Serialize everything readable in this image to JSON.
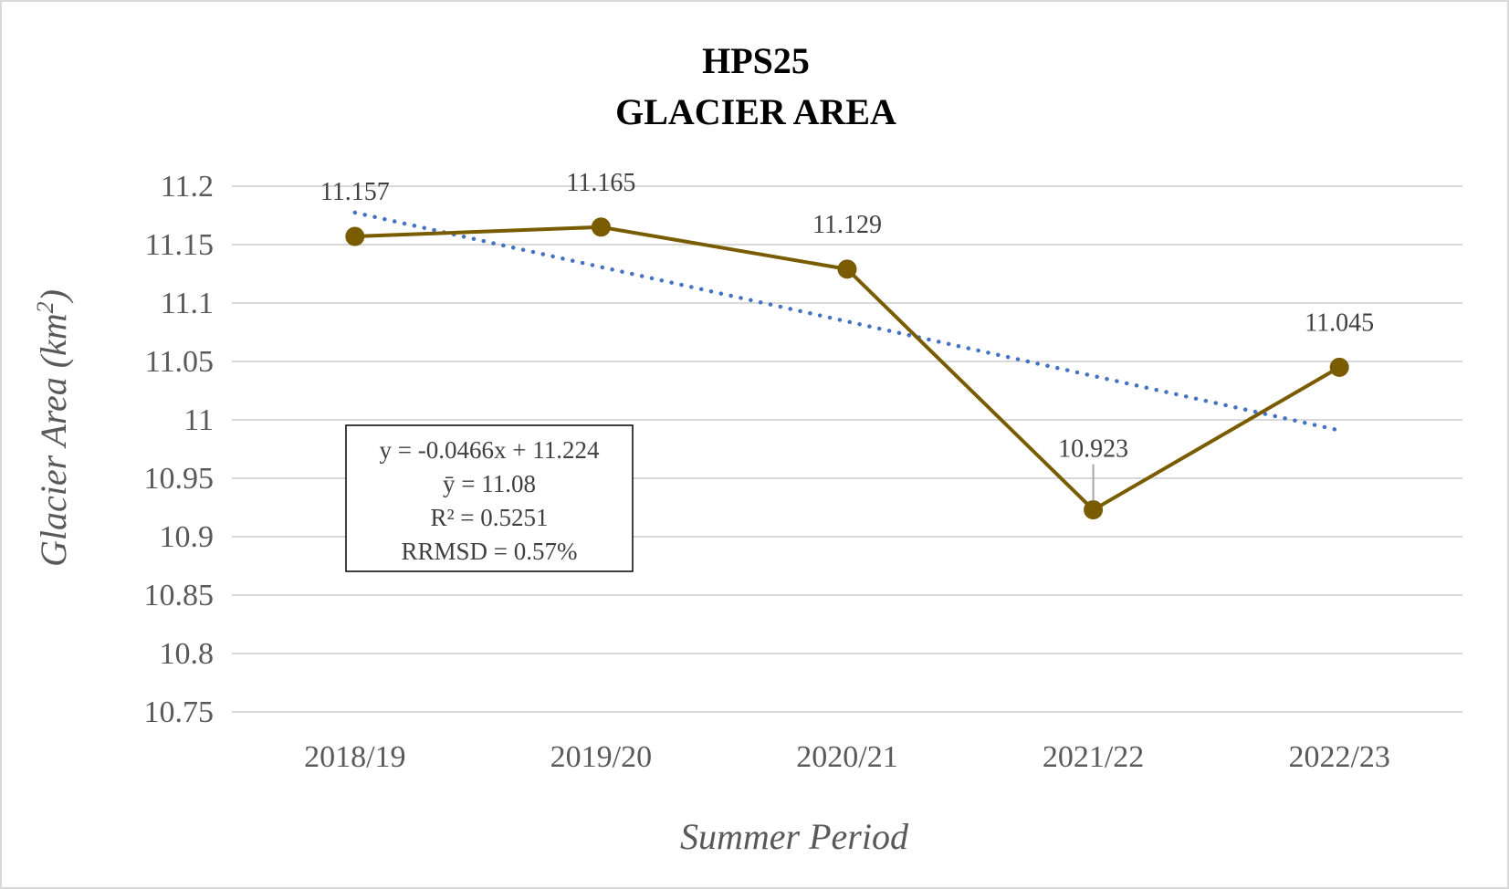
{
  "chart_data": {
    "type": "line",
    "title_line1": "HPS25",
    "title_line2": "GLACIER AREA",
    "xlabel": "Summer Period",
    "ylabel_text": "Glacier Area (km",
    "ylabel_sup": "2",
    "ylabel_close": ")",
    "categories": [
      "2018/19",
      "2019/20",
      "2020/21",
      "2021/22",
      "2022/23"
    ],
    "values": [
      11.157,
      11.165,
      11.129,
      10.923,
      11.045
    ],
    "data_labels": [
      "11.157",
      "11.165",
      "11.129",
      "10.923",
      "11.045"
    ],
    "ylim": [
      10.75,
      11.2
    ],
    "yticks": [
      "11.2",
      "11.15",
      "11.1",
      "11.05",
      "11",
      "10.95",
      "10.9",
      "10.85",
      "10.8",
      "10.75"
    ],
    "grid": true,
    "trendline": {
      "type": "linear",
      "slope": -0.0466,
      "intercept": 11.224,
      "style": "dotted"
    },
    "stats_box": [
      "y = -0.0466x + 11.224",
      "ȳ = 11.08",
      "R² = 0.5251",
      "RRMSD = 0.57%"
    ],
    "colors": {
      "series": "#7a5c00",
      "trend": "#4472c4",
      "grid": "#d9d9d9"
    }
  }
}
